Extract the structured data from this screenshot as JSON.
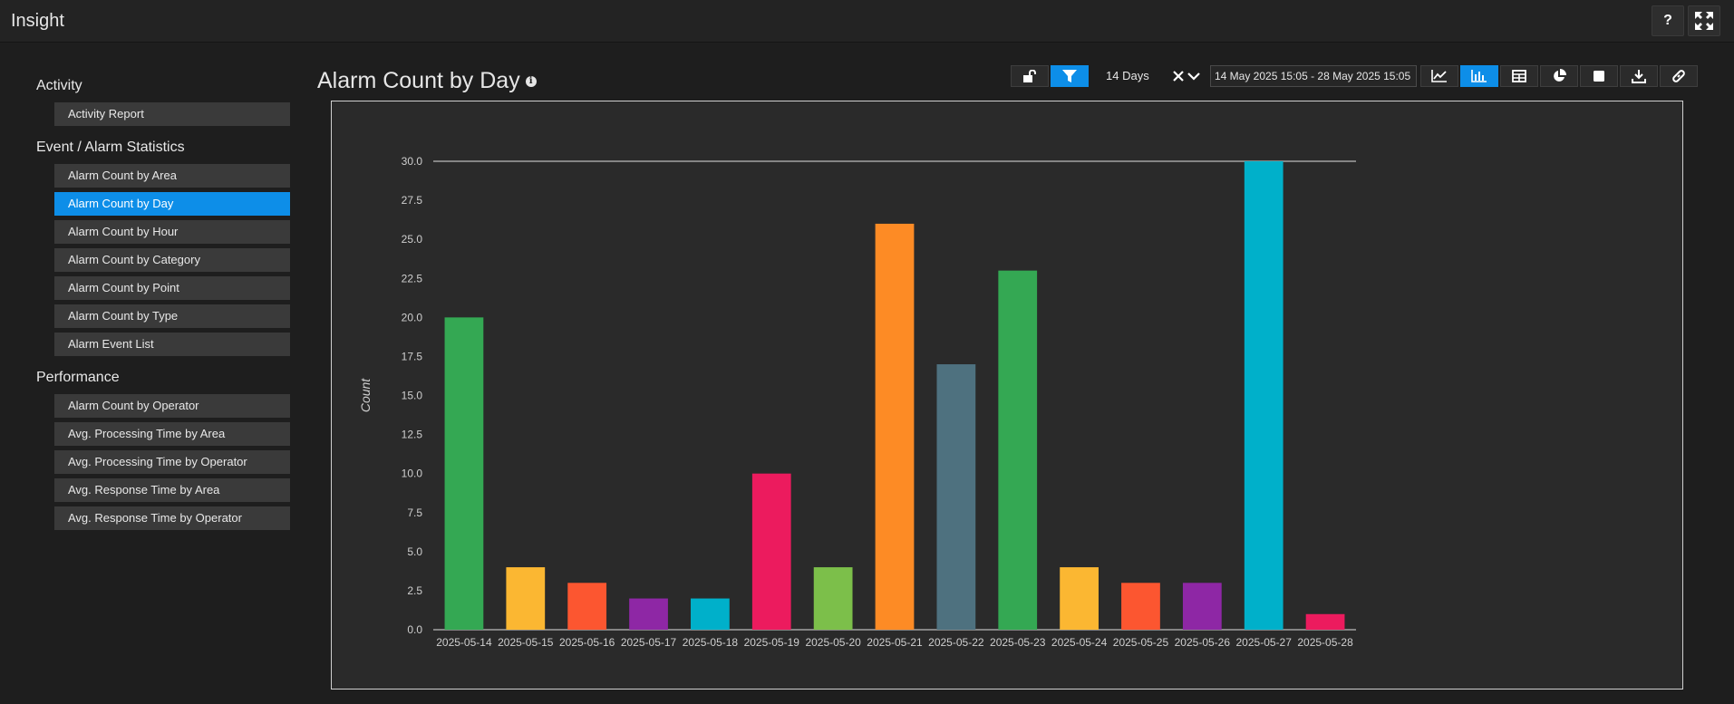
{
  "app": {
    "title": "Insight"
  },
  "topbar": {
    "help_label": "?"
  },
  "sidebar": {
    "groups": [
      {
        "heading": "Activity",
        "items": [
          "Activity Report"
        ]
      },
      {
        "heading": "Event / Alarm Statistics",
        "items": [
          "Alarm Count by Area",
          "Alarm Count by Day",
          "Alarm Count by Hour",
          "Alarm Count by Category",
          "Alarm Count by Point",
          "Alarm Count by Type",
          "Alarm Event List"
        ]
      },
      {
        "heading": "Performance",
        "items": [
          "Alarm Count by Operator",
          "Avg. Processing Time by Area",
          "Avg. Processing Time by Operator",
          "Avg. Response Time by Area",
          "Avg. Response Time by Operator"
        ]
      }
    ],
    "active_item": "Alarm Count by Day"
  },
  "report": {
    "title": "Alarm Count by Day",
    "info_glyph": "i",
    "range_label": "14 Days",
    "date_range": "14 May 2025 15:05 - 28 May 2025 15:05"
  },
  "colors": {
    "accent": "#0d8ee8",
    "bars": [
      "#34a853",
      "#fbb732",
      "#fc5630",
      "#8e27a5",
      "#00b0ca",
      "#ec1b5e",
      "#7cbf4a",
      "#fd8b25",
      "#4e717f",
      "#34a853",
      "#fbb732",
      "#fc5630",
      "#8e27a5",
      "#00b0ca",
      "#ec1b5e"
    ]
  },
  "chart_data": {
    "type": "bar",
    "title": "Alarm Count by Day",
    "xlabel": "",
    "ylabel": "Count",
    "categories": [
      "2025-05-14",
      "2025-05-15",
      "2025-05-16",
      "2025-05-17",
      "2025-05-18",
      "2025-05-19",
      "2025-05-20",
      "2025-05-21",
      "2025-05-22",
      "2025-05-23",
      "2025-05-24",
      "2025-05-25",
      "2025-05-26",
      "2025-05-27",
      "2025-05-28"
    ],
    "values": [
      20,
      4,
      3,
      2,
      2,
      10,
      4,
      26,
      17,
      23,
      4,
      3,
      3,
      30,
      1
    ],
    "ylim": [
      0,
      30
    ],
    "yticks": [
      "0.0",
      "2.5",
      "5.0",
      "7.5",
      "10.0",
      "12.5",
      "15.0",
      "17.5",
      "20.0",
      "22.5",
      "25.0",
      "27.5",
      "30.0"
    ],
    "grid": false
  }
}
